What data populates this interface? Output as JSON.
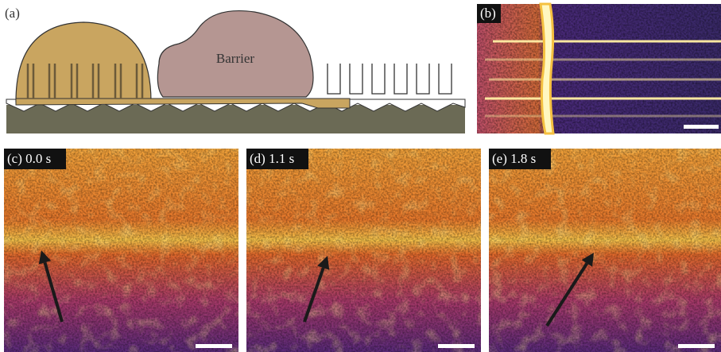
{
  "panels": [
    {
      "label": "(a)",
      "annotation": "Barrier"
    },
    {
      "label": "(b)"
    },
    {
      "label": "(c) 0.0 s"
    },
    {
      "label": "(d) 1.1 s"
    },
    {
      "label": "(e) 1.8 s"
    }
  ]
}
